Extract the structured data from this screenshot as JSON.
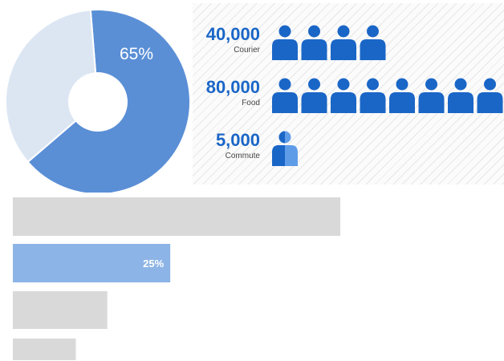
{
  "colors": {
    "donut_main": "#5a8fd6",
    "donut_rest": "#dce6f3",
    "person": "#1a66c7",
    "person_light": "#5f9ce8",
    "bar_gray": "#d9d9d9",
    "bar_blue": "#8db4e6"
  },
  "chart_data": [
    {
      "type": "pie",
      "slices": [
        {
          "value": 65,
          "color": "#5a8fd6"
        },
        {
          "value": 35,
          "color": "#dce6f3"
        }
      ],
      "data_label": "65%"
    },
    {
      "type": "table",
      "icon": "person-icon",
      "rows": [
        {
          "value": "40,000",
          "label": "Courier",
          "icons": 4
        },
        {
          "value": "80,000",
          "label": "Food",
          "icons": 8
        },
        {
          "value": "5,000",
          "label": "Commute",
          "icons": 0.5
        }
      ]
    },
    {
      "type": "bar",
      "orientation": "horizontal",
      "values": [
        52,
        25,
        15,
        10
      ],
      "data_labels": [
        "",
        "25%",
        "",
        ""
      ],
      "xlim": [
        0,
        78
      ]
    }
  ]
}
